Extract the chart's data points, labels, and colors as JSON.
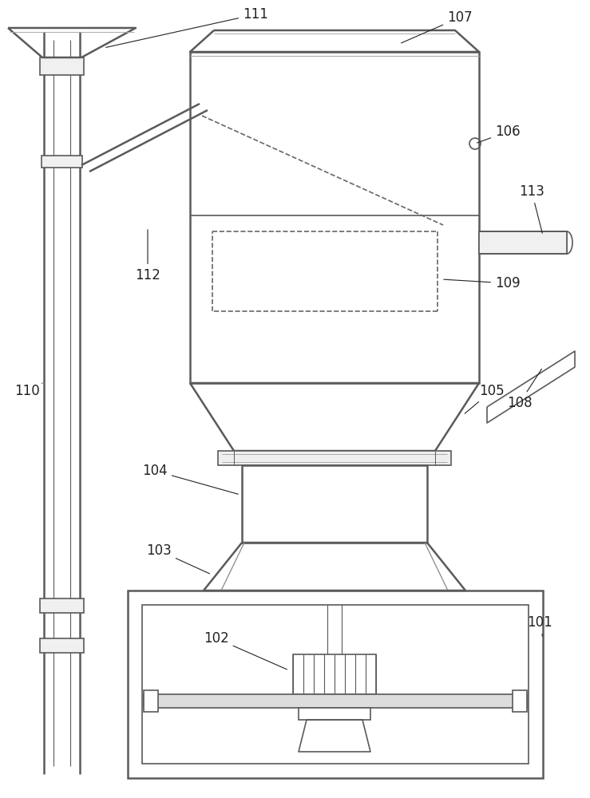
{
  "bg_color": "#ffffff",
  "line_color": "#5a5a5a",
  "line_width": 1.2,
  "thick_line": 1.8,
  "font_size": 12,
  "label_color": "#222222"
}
